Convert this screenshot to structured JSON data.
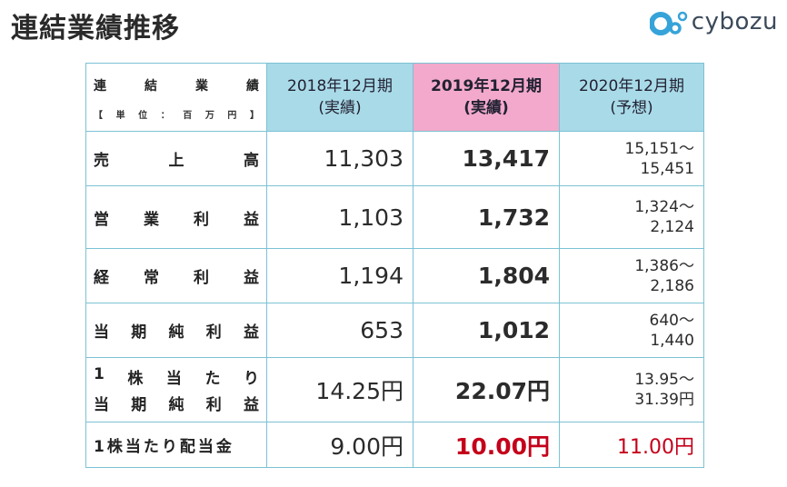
{
  "page_title": "連結業績推移",
  "logo": {
    "text": "cybozu",
    "icon": "cybozu-logo-icon",
    "colors": {
      "dark": "#3b4a5a",
      "accent": "#36a3d9"
    }
  },
  "table": {
    "header": {
      "label_chars": [
        "連",
        "結",
        "業",
        "績"
      ],
      "unit_chars": [
        "【",
        "単",
        "位",
        "：",
        "百",
        "万",
        "円",
        "】"
      ],
      "columns": [
        {
          "period": "2018年12月期",
          "type": "(実績)"
        },
        {
          "period": "2019年12月期",
          "type": "(実績)"
        },
        {
          "period": "2020年12月期",
          "type": "(予想)"
        }
      ]
    },
    "rows": [
      {
        "label_chars": [
          "売",
          "上",
          "高"
        ],
        "v2018": "11,303",
        "v2019": "13,417",
        "fc1": "15,151〜",
        "fc2": "15,451"
      },
      {
        "label_chars": [
          "営",
          "業",
          "利",
          "益"
        ],
        "v2018": "1,103",
        "v2019": "1,732",
        "fc1": "1,324〜",
        "fc2": "2,124"
      },
      {
        "label_chars": [
          "経",
          "常",
          "利",
          "益"
        ],
        "v2018": "1,194",
        "v2019": "1,804",
        "fc1": "1,386〜",
        "fc2": "2,186"
      },
      {
        "label_chars": [
          "当",
          "期",
          "純",
          "利",
          "益"
        ],
        "v2018": "653",
        "v2019": "1,012",
        "fc1": "640〜",
        "fc2": "1,440"
      },
      {
        "label_line1": [
          "1",
          "株",
          "当",
          "た",
          "り"
        ],
        "label_line2": [
          "当",
          "期",
          "純",
          "利",
          "益"
        ],
        "v2018": "14.25円",
        "v2019": "22.07円",
        "fc1": "13.95〜",
        "fc2": "31.39円"
      },
      {
        "label": "1株当たり配当金",
        "v2018": "9.00円",
        "v2019": "10.00円",
        "fc": "11.00円"
      }
    ]
  },
  "colors": {
    "header_blue": "#a9dae8",
    "header_pink": "#f3a9cb",
    "border": "#7cc2d4",
    "highlight_red": "#c4001a"
  }
}
